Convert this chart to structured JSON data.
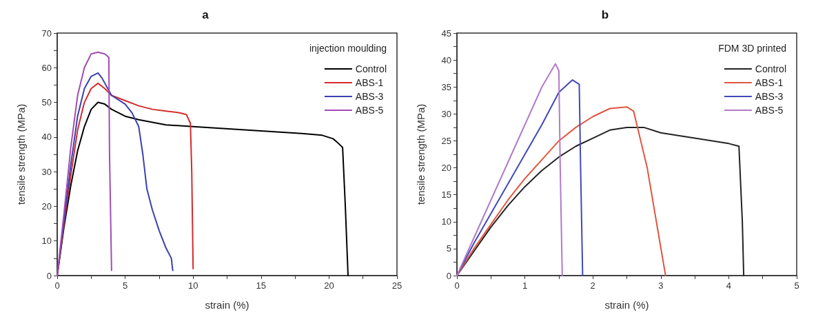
{
  "chart_data": [
    {
      "type": "line",
      "title": "a",
      "xlabel": "strain (%)",
      "ylabel": "tensile strength (MPa)",
      "legend_title": "injection moulding",
      "legend": "top right",
      "grid": false,
      "marker": "none",
      "line_style": "solid",
      "xlim": [
        0,
        25
      ],
      "xticks": [
        0,
        5,
        10,
        15,
        20,
        25
      ],
      "ylim": [
        0,
        70
      ],
      "yticks": [
        0,
        10,
        20,
        30,
        40,
        50,
        60,
        70
      ],
      "series": [
        {
          "name": "Control",
          "color": "#000000",
          "x": [
            0,
            0.5,
            1,
            1.5,
            2,
            2.5,
            3,
            3.5,
            4,
            5,
            6,
            8,
            10,
            12,
            14,
            16,
            18,
            19.5,
            20.3,
            20.6,
            21,
            21.2,
            21.4
          ],
          "values": [
            0,
            14,
            26,
            36,
            43,
            48,
            50,
            49.5,
            48,
            46,
            45,
            43.5,
            43,
            42.5,
            42,
            41.5,
            41,
            40.5,
            39.5,
            38.5,
            37,
            20,
            0
          ]
        },
        {
          "name": "ABS-1",
          "color": "#d42a2a",
          "x": [
            0,
            0.5,
            1,
            1.5,
            2,
            2.5,
            3,
            3.5,
            4,
            5,
            6,
            7,
            8,
            9,
            9.5,
            9.8,
            9.9,
            10
          ],
          "values": [
            0,
            15,
            29,
            42,
            50,
            54,
            55.5,
            54,
            52,
            50.5,
            49,
            48,
            47.5,
            47,
            46.5,
            44,
            30,
            2
          ]
        },
        {
          "name": "ABS-3",
          "color": "#3a3fb0",
          "x": [
            0,
            0.5,
            1,
            1.5,
            2,
            2.5,
            3,
            3.3,
            4,
            5,
            5.5,
            6,
            6.3,
            6.6,
            7,
            7.5,
            8,
            8.4,
            8.5
          ],
          "values": [
            0,
            16,
            32,
            46,
            54,
            57.5,
            58.5,
            57,
            52,
            49.5,
            47,
            43,
            35,
            25,
            19,
            13,
            8,
            5,
            1.5
          ]
        },
        {
          "name": "ABS-5",
          "color": "#a24cb4",
          "x": [
            0,
            0.5,
            1,
            1.5,
            2,
            2.5,
            3,
            3.5,
            3.8,
            3.85,
            4
          ],
          "values": [
            0,
            18,
            37,
            52,
            60,
            64,
            64.5,
            64,
            63,
            35,
            1.5
          ]
        }
      ]
    },
    {
      "type": "line",
      "title": "b",
      "xlabel": "strain (%)",
      "ylabel": "tensile strength (MPa)",
      "legend_title": "FDM 3D printed",
      "legend": "top right",
      "grid": false,
      "marker": "none",
      "line_style": "solid",
      "xlim": [
        0,
        5
      ],
      "xticks": [
        0,
        1,
        2,
        3,
        4,
        5
      ],
      "ylim": [
        0,
        45
      ],
      "yticks": [
        0,
        5,
        10,
        15,
        20,
        25,
        30,
        35,
        40,
        45
      ],
      "series": [
        {
          "name": "Control",
          "color": "#222222",
          "x": [
            0,
            0.25,
            0.5,
            0.75,
            1,
            1.25,
            1.5,
            1.75,
            2,
            2.25,
            2.5,
            2.75,
            3,
            3.5,
            4,
            4.15,
            4.2,
            4.22
          ],
          "values": [
            0,
            4.5,
            9,
            13,
            16.5,
            19.5,
            22,
            24,
            25.5,
            27,
            27.5,
            27.5,
            26.5,
            25.5,
            24.5,
            24,
            10,
            0
          ]
        },
        {
          "name": "ABS-1",
          "color": "#e0553f",
          "x": [
            0,
            0.25,
            0.5,
            0.75,
            1,
            1.25,
            1.5,
            1.75,
            2,
            2.25,
            2.5,
            2.6,
            2.8,
            3.07
          ],
          "values": [
            0,
            5,
            9.5,
            14,
            18,
            21.5,
            25,
            27.5,
            29.5,
            31,
            31.3,
            30.5,
            20,
            0
          ]
        },
        {
          "name": "ABS-3",
          "color": "#4048b8",
          "x": [
            0,
            0.25,
            0.5,
            0.75,
            1,
            1.25,
            1.5,
            1.7,
            1.8,
            1.82,
            1.85
          ],
          "values": [
            0,
            6,
            11.5,
            17,
            22.5,
            28,
            34,
            36.3,
            35.5,
            20,
            0
          ]
        },
        {
          "name": "ABS-5",
          "color": "#b07ac8",
          "x": [
            0,
            0.25,
            0.5,
            0.75,
            1,
            1.25,
            1.45,
            1.5,
            1.52,
            1.55
          ],
          "values": [
            0,
            7,
            14,
            21,
            28,
            35,
            39.3,
            38,
            20,
            0
          ]
        }
      ]
    }
  ]
}
